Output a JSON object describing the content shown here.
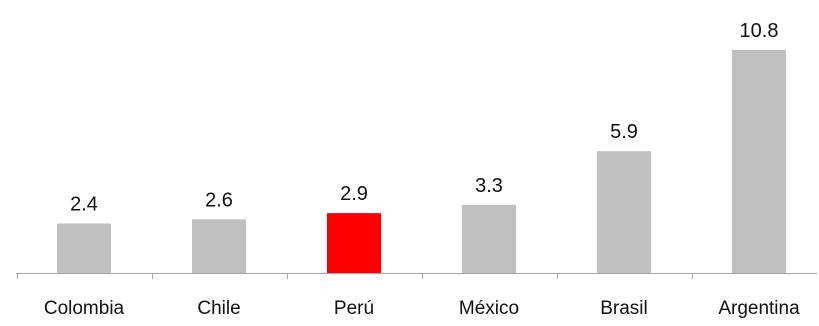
{
  "chart_data": {
    "type": "bar",
    "categories": [
      "Colombia",
      "Chile",
      "Perú",
      "México",
      "Brasil",
      "Argentina"
    ],
    "values": [
      2.4,
      2.6,
      2.9,
      3.3,
      5.9,
      10.8
    ],
    "value_labels": [
      "2.4",
      "2.6",
      "2.9",
      "3.3",
      "5.9",
      "10.8"
    ],
    "highlight_category": "Perú",
    "colors": {
      "default_bar": "#c0c0c0",
      "highlight_bar": "#ff0000",
      "axis": "#a6a6a6",
      "text": "#111111"
    },
    "ylim": [
      0,
      11.5
    ],
    "grid": false,
    "legend": "none",
    "title": "",
    "xlabel": "",
    "ylabel": ""
  }
}
